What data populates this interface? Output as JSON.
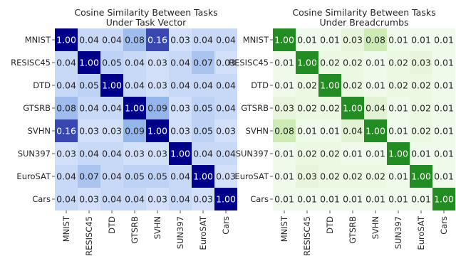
{
  "chart_data": [
    {
      "type": "heatmap",
      "title": "Cosine Similarity Between Tasks",
      "subtitle": "Under Task Vector",
      "categories": [
        "MNIST",
        "RESISC45",
        "DTD",
        "GTSRB",
        "SVHN",
        "SUN397",
        "EuroSAT",
        "Cars"
      ],
      "values": [
        [
          1.0,
          0.04,
          0.04,
          0.08,
          0.16,
          0.03,
          0.04,
          0.04
        ],
        [
          0.04,
          1.0,
          0.05,
          0.04,
          0.03,
          0.04,
          0.07,
          0.03
        ],
        [
          0.04,
          0.05,
          1.0,
          0.04,
          0.03,
          0.04,
          0.04,
          0.04
        ],
        [
          0.08,
          0.04,
          0.04,
          1.0,
          0.09,
          0.03,
          0.05,
          0.04
        ],
        [
          0.16,
          0.03,
          0.03,
          0.09,
          1.0,
          0.03,
          0.05,
          0.03
        ],
        [
          0.03,
          0.04,
          0.04,
          0.03,
          0.03,
          1.0,
          0.04,
          0.04
        ],
        [
          0.04,
          0.07,
          0.04,
          0.05,
          0.05,
          0.04,
          1.0,
          0.03
        ],
        [
          0.04,
          0.03,
          0.04,
          0.04,
          0.03,
          0.04,
          0.03,
          1.0
        ]
      ],
      "value_labels": [
        [
          "1.00",
          "0.04",
          "0.04",
          "0.08",
          "0.16",
          "0.03",
          "0.04",
          "0.04"
        ],
        [
          "0.04",
          "1.00",
          "0.05",
          "0.04",
          "0.03",
          "0.04",
          "0.07",
          "0.03"
        ],
        [
          "0.04",
          "0.05",
          "1.00",
          "0.04",
          "0.03",
          "0.04",
          "0.04",
          "0.04"
        ],
        [
          "0.08",
          "0.04",
          "0.04",
          "1.00",
          "0.09",
          "0.03",
          "0.05",
          "0.04"
        ],
        [
          "0.16",
          "0.03",
          "0.03",
          "0.09",
          "1.00",
          "0.03",
          "0.05",
          "0.03"
        ],
        [
          "0.03",
          "0.04",
          "0.04",
          "0.03",
          "0.03",
          "1.00",
          "0.04",
          "0.04"
        ],
        [
          "0.04",
          "0.07",
          "0.04",
          "0.05",
          "0.05",
          "0.04",
          "1.00",
          "0.03"
        ],
        [
          "0.04",
          "0.03",
          "0.04",
          "0.04",
          "0.03",
          "0.04",
          "0.03",
          "1.00"
        ]
      ],
      "colormap": "Blues",
      "color_low": "#f0f6ff",
      "color_mid": "#8aaee8",
      "color_high": "#00008b",
      "vmax": 0.2
    },
    {
      "type": "heatmap",
      "title": "Cosine Similarity Between Tasks",
      "subtitle": "Under Breadcrumbs",
      "categories": [
        "MNIST",
        "RESISC45",
        "DTD",
        "GTSRB",
        "SVHN",
        "SUN397",
        "EuroSAT",
        "Cars"
      ],
      "values": [
        [
          1.0,
          0.01,
          0.01,
          0.03,
          0.08,
          0.01,
          0.01,
          0.01
        ],
        [
          0.01,
          1.0,
          0.02,
          0.02,
          0.01,
          0.02,
          0.03,
          0.01
        ],
        [
          0.01,
          0.02,
          1.0,
          0.02,
          0.01,
          0.02,
          0.02,
          0.01
        ],
        [
          0.03,
          0.02,
          0.02,
          1.0,
          0.04,
          0.01,
          0.02,
          0.01
        ],
        [
          0.08,
          0.01,
          0.01,
          0.04,
          1.0,
          0.01,
          0.02,
          0.01
        ],
        [
          0.01,
          0.02,
          0.02,
          0.01,
          0.01,
          1.0,
          0.01,
          0.01
        ],
        [
          0.01,
          0.03,
          0.02,
          0.02,
          0.02,
          0.01,
          1.0,
          0.01
        ],
        [
          0.01,
          0.01,
          0.01,
          0.01,
          0.01,
          0.01,
          0.01,
          1.0
        ]
      ],
      "value_labels": [
        [
          "1.00",
          "0.01",
          "0.01",
          "0.03",
          "0.08",
          "0.01",
          "0.01",
          "0.01"
        ],
        [
          "0.01",
          "1.00",
          "0.02",
          "0.02",
          "0.01",
          "0.02",
          "0.03",
          "0.01"
        ],
        [
          "0.01",
          "0.02",
          "1.00",
          "0.02",
          "0.01",
          "0.02",
          "0.02",
          "0.01"
        ],
        [
          "0.03",
          "0.02",
          "0.02",
          "1.00",
          "0.04",
          "0.01",
          "0.02",
          "0.01"
        ],
        [
          "0.08",
          "0.01",
          "0.01",
          "0.04",
          "1.00",
          "0.01",
          "0.02",
          "0.01"
        ],
        [
          "0.01",
          "0.02",
          "0.02",
          "0.01",
          "0.01",
          "1.00",
          "0.01",
          "0.01"
        ],
        [
          "0.01",
          "0.03",
          "0.02",
          "0.02",
          "0.02",
          "0.01",
          "1.00",
          "0.01"
        ],
        [
          "0.01",
          "0.01",
          "0.01",
          "0.01",
          "0.01",
          "0.01",
          "0.01",
          "1.00"
        ]
      ],
      "colormap": "Greens",
      "color_low": "#f4fcf1",
      "color_mid": "#c5e6a6",
      "color_high": "#228b22",
      "vmax": 0.2
    }
  ]
}
